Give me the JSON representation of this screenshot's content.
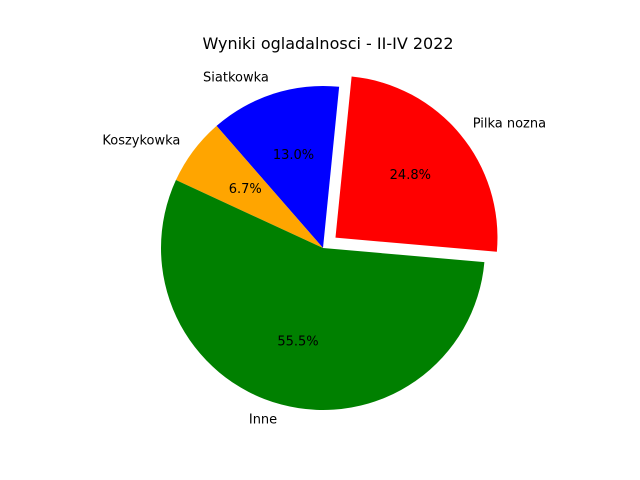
{
  "chart_data": {
    "type": "pie",
    "title": "Wyniki ogladalnosci - II-IV 2022",
    "slices": [
      {
        "label": "Pilka nozna",
        "value": 24.8,
        "pct_label": "24.8%",
        "color": "#ff0000",
        "explode": true
      },
      {
        "label": "Siatkowka",
        "value": 13.0,
        "pct_label": "13.0%",
        "color": "#0000ff",
        "explode": false
      },
      {
        "label": "Koszykowka",
        "value": 6.7,
        "pct_label": "6.7%",
        "color": "#ffa500",
        "explode": false
      },
      {
        "label": "Inne",
        "value": 55.5,
        "pct_label": "55.5%",
        "color": "#008000",
        "explode": false
      }
    ],
    "grid": false,
    "legend": "none"
  }
}
